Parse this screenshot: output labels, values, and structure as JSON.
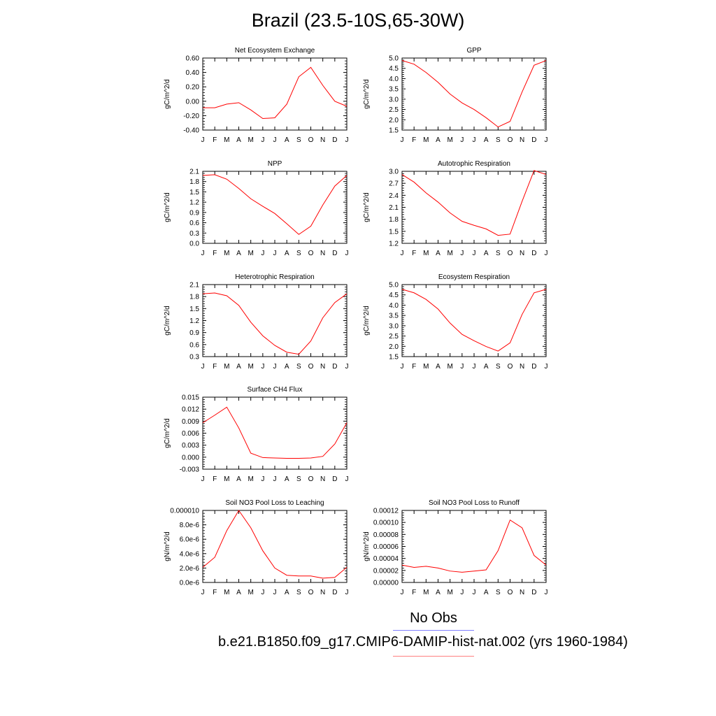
{
  "page": {
    "title": "Brazil (23.5-10S,65-30W)",
    "legend": {
      "obs_label": "No Obs",
      "obs_color": "#8080ff",
      "case_label": "b.e21.B1850.f09_g17.CMIP6-DAMIP-hist-nat.002 (yrs 1960-1984)",
      "case_color": "#ff8080"
    }
  },
  "chart_data": [
    {
      "type": "line",
      "title": "Net Ecosystem Exchange",
      "ylabel": "gC/m^2/d",
      "x": [
        "J",
        "F",
        "M",
        "A",
        "M",
        "J",
        "J",
        "A",
        "S",
        "O",
        "N",
        "D",
        "J"
      ],
      "ylim": [
        -0.4,
        0.6
      ],
      "yticks": [
        "-0.40",
        "-0.20",
        "0.00",
        "0.20",
        "0.40",
        "0.60"
      ],
      "series": [
        {
          "color": "#ff0000",
          "values": [
            -0.09,
            -0.09,
            -0.04,
            -0.02,
            -0.12,
            -0.24,
            -0.23,
            -0.04,
            0.34,
            0.47,
            0.22,
            0.0,
            -0.07
          ]
        }
      ]
    },
    {
      "type": "line",
      "title": "GPP",
      "ylabel": "gC/m^2/d",
      "x": [
        "J",
        "F",
        "M",
        "A",
        "M",
        "J",
        "J",
        "A",
        "S",
        "O",
        "N",
        "D",
        "J"
      ],
      "ylim": [
        1.5,
        5.0
      ],
      "yticks": [
        "1.5",
        "2.0",
        "2.5",
        "3.0",
        "3.5",
        "4.0",
        "4.5",
        "5.0"
      ],
      "series": [
        {
          "color": "#ff0000",
          "values": [
            4.88,
            4.7,
            4.3,
            3.82,
            3.25,
            2.82,
            2.5,
            2.1,
            1.65,
            1.92,
            3.35,
            4.65,
            4.88
          ]
        }
      ]
    },
    {
      "type": "line",
      "title": "NPP",
      "ylabel": "gC/m^2/d",
      "x": [
        "J",
        "F",
        "M",
        "A",
        "M",
        "J",
        "J",
        "A",
        "S",
        "O",
        "N",
        "D",
        "J"
      ],
      "ylim": [
        0.0,
        2.1
      ],
      "yticks": [
        "0.0",
        "0.3",
        "0.6",
        "0.9",
        "1.2",
        "1.5",
        "1.8",
        "2.1"
      ],
      "series": [
        {
          "color": "#ff0000",
          "values": [
            1.98,
            2.0,
            1.87,
            1.6,
            1.3,
            1.08,
            0.87,
            0.57,
            0.26,
            0.5,
            1.12,
            1.67,
            1.98
          ]
        }
      ]
    },
    {
      "type": "line",
      "title": "Autotrophic Respiration",
      "ylabel": "gC/m^2/d",
      "x": [
        "J",
        "F",
        "M",
        "A",
        "M",
        "J",
        "J",
        "A",
        "S",
        "O",
        "N",
        "D",
        "J"
      ],
      "ylim": [
        1.2,
        3.0
      ],
      "yticks": [
        "1.2",
        "1.5",
        "1.8",
        "2.1",
        "2.4",
        "2.7",
        "3.0"
      ],
      "series": [
        {
          "color": "#ff0000",
          "values": [
            2.92,
            2.73,
            2.46,
            2.23,
            1.96,
            1.75,
            1.65,
            1.56,
            1.4,
            1.43,
            2.25,
            3.02,
            2.92
          ]
        }
      ]
    },
    {
      "type": "line",
      "title": "Heterotrophic Respiration",
      "ylabel": "gC/m^2/d",
      "x": [
        "J",
        "F",
        "M",
        "A",
        "M",
        "J",
        "J",
        "A",
        "S",
        "O",
        "N",
        "D",
        "J"
      ],
      "ylim": [
        0.3,
        2.1
      ],
      "yticks": [
        "0.3",
        "0.6",
        "0.9",
        "1.2",
        "1.5",
        "1.8",
        "2.1"
      ],
      "series": [
        {
          "color": "#ff0000",
          "values": [
            1.87,
            1.89,
            1.82,
            1.58,
            1.16,
            0.82,
            0.58,
            0.41,
            0.36,
            0.69,
            1.27,
            1.65,
            1.87
          ]
        }
      ]
    },
    {
      "type": "line",
      "title": "Ecosystem Respiration",
      "ylabel": "gC/m^2/d",
      "x": [
        "J",
        "F",
        "M",
        "A",
        "M",
        "J",
        "J",
        "A",
        "S",
        "O",
        "N",
        "D",
        "J"
      ],
      "ylim": [
        1.5,
        5.0
      ],
      "yticks": [
        "1.5",
        "2.0",
        "2.5",
        "3.0",
        "3.5",
        "4.0",
        "4.5",
        "5.0"
      ],
      "series": [
        {
          "color": "#ff0000",
          "values": [
            4.77,
            4.6,
            4.28,
            3.81,
            3.13,
            2.58,
            2.27,
            1.99,
            1.77,
            2.17,
            3.55,
            4.6,
            4.77
          ]
        }
      ]
    },
    {
      "type": "line",
      "title": "Surface CH4 Flux",
      "ylabel": "gC/m^2/d",
      "x": [
        "J",
        "F",
        "M",
        "A",
        "M",
        "J",
        "J",
        "A",
        "S",
        "O",
        "N",
        "D",
        "J"
      ],
      "ylim": [
        -0.003,
        0.015
      ],
      "yticks": [
        "-0.003",
        "0.000",
        "0.003",
        "0.006",
        "0.009",
        "0.012",
        "0.015"
      ],
      "series": [
        {
          "color": "#ff0000",
          "values": [
            0.0086,
            0.0105,
            0.0125,
            0.0073,
            0.001,
            -0.0001,
            -0.0002,
            -0.0003,
            -0.0003,
            -0.0002,
            0.0002,
            0.0033,
            0.0086
          ]
        }
      ]
    },
    {
      "type": "line",
      "title": "Soil NO3 Pool Loss to Leaching",
      "ylabel": "gN/m^2/d",
      "x": [
        "J",
        "F",
        "M",
        "A",
        "M",
        "J",
        "J",
        "A",
        "S",
        "O",
        "N",
        "D",
        "J"
      ],
      "ylim": [
        0.0,
        1e-05
      ],
      "yticks": [
        "0.0e-6",
        "2.0e-6",
        "4.0e-6",
        "6.0e-6",
        "8.0e-6",
        "0.000010"
      ],
      "series": [
        {
          "color": "#ff0000",
          "values": [
            2.1e-06,
            3.5e-06,
            7.2e-06,
            1e-05,
            7.6e-06,
            4.4e-06,
            2e-06,
            1e-06,
            9e-07,
            9e-07,
            6e-07,
            7e-07,
            2.1e-06
          ]
        }
      ]
    },
    {
      "type": "line",
      "title": "Soil NO3 Pool Loss to Runoff",
      "ylabel": "gN/m^2/d",
      "x": [
        "J",
        "F",
        "M",
        "A",
        "M",
        "J",
        "J",
        "A",
        "S",
        "O",
        "N",
        "D",
        "J"
      ],
      "ylim": [
        0.0,
        0.00012
      ],
      "yticks": [
        "0.00000",
        "0.00002",
        "0.00004",
        "0.00006",
        "0.00008",
        "0.00010",
        "0.00012"
      ],
      "series": [
        {
          "color": "#ff0000",
          "values": [
            2.9e-05,
            2.5e-05,
            2.7e-05,
            2.4e-05,
            1.9e-05,
            1.7e-05,
            1.9e-05,
            2.1e-05,
            5.3e-05,
            0.000104,
            9.1e-05,
            4.5e-05,
            2.9e-05
          ]
        }
      ]
    }
  ]
}
